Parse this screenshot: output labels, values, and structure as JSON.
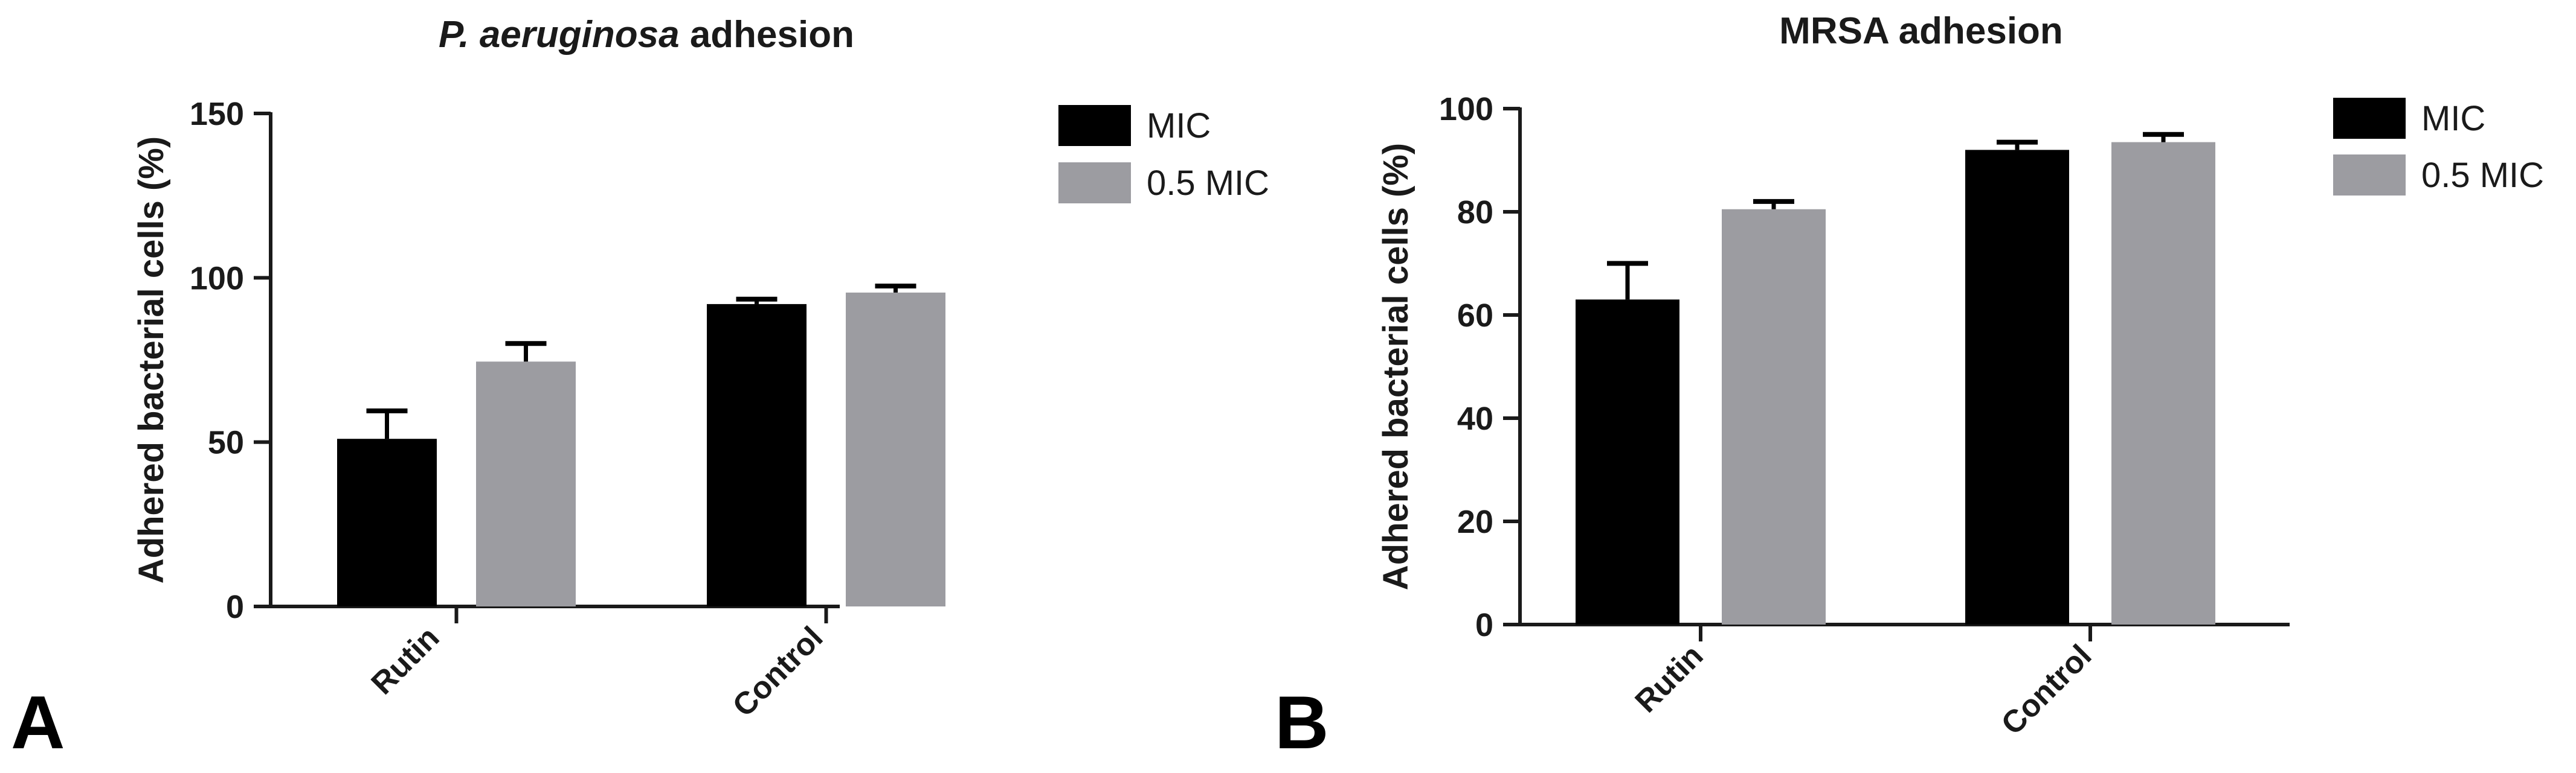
{
  "chart_data": [
    {
      "panel": "A",
      "type": "bar",
      "title_normal": "",
      "title_italic": "P. aeruginosa",
      "title_rest": " adhesion",
      "ylabel": "Adhered bacterial cells (%)",
      "xlabel": "",
      "categories": [
        "Rutin",
        "Control"
      ],
      "ylim": [
        0,
        150
      ],
      "yticks": [
        "0",
        "50",
        "100",
        "150"
      ],
      "series": [
        {
          "name": "MIC",
          "color": "#000000",
          "values": [
            51,
            92
          ],
          "errors": [
            8.5,
            1.5
          ]
        },
        {
          "name": "0.5 MIC",
          "color": "#9c9ca1",
          "values": [
            74.5,
            95.5
          ],
          "errors": [
            5.5,
            2
          ]
        }
      ],
      "legend": "right",
      "grid": false
    },
    {
      "panel": "B",
      "type": "bar",
      "title_normal": "MRSA adhesion",
      "title_italic": "",
      "title_rest": "",
      "ylabel": "Adhered bacterial cells (%)",
      "xlabel": "",
      "categories": [
        "Rutin",
        "Control"
      ],
      "ylim": [
        0,
        100
      ],
      "yticks": [
        "0",
        "20",
        "40",
        "60",
        "80",
        "100"
      ],
      "series": [
        {
          "name": "MIC",
          "color": "#000000",
          "values": [
            63,
            92
          ],
          "errors": [
            7,
            1.5
          ]
        },
        {
          "name": "0.5 MIC",
          "color": "#9c9ca1",
          "values": [
            80.5,
            93.5
          ],
          "errors": [
            1.5,
            1.5
          ]
        }
      ],
      "legend": "right",
      "grid": false
    }
  ]
}
